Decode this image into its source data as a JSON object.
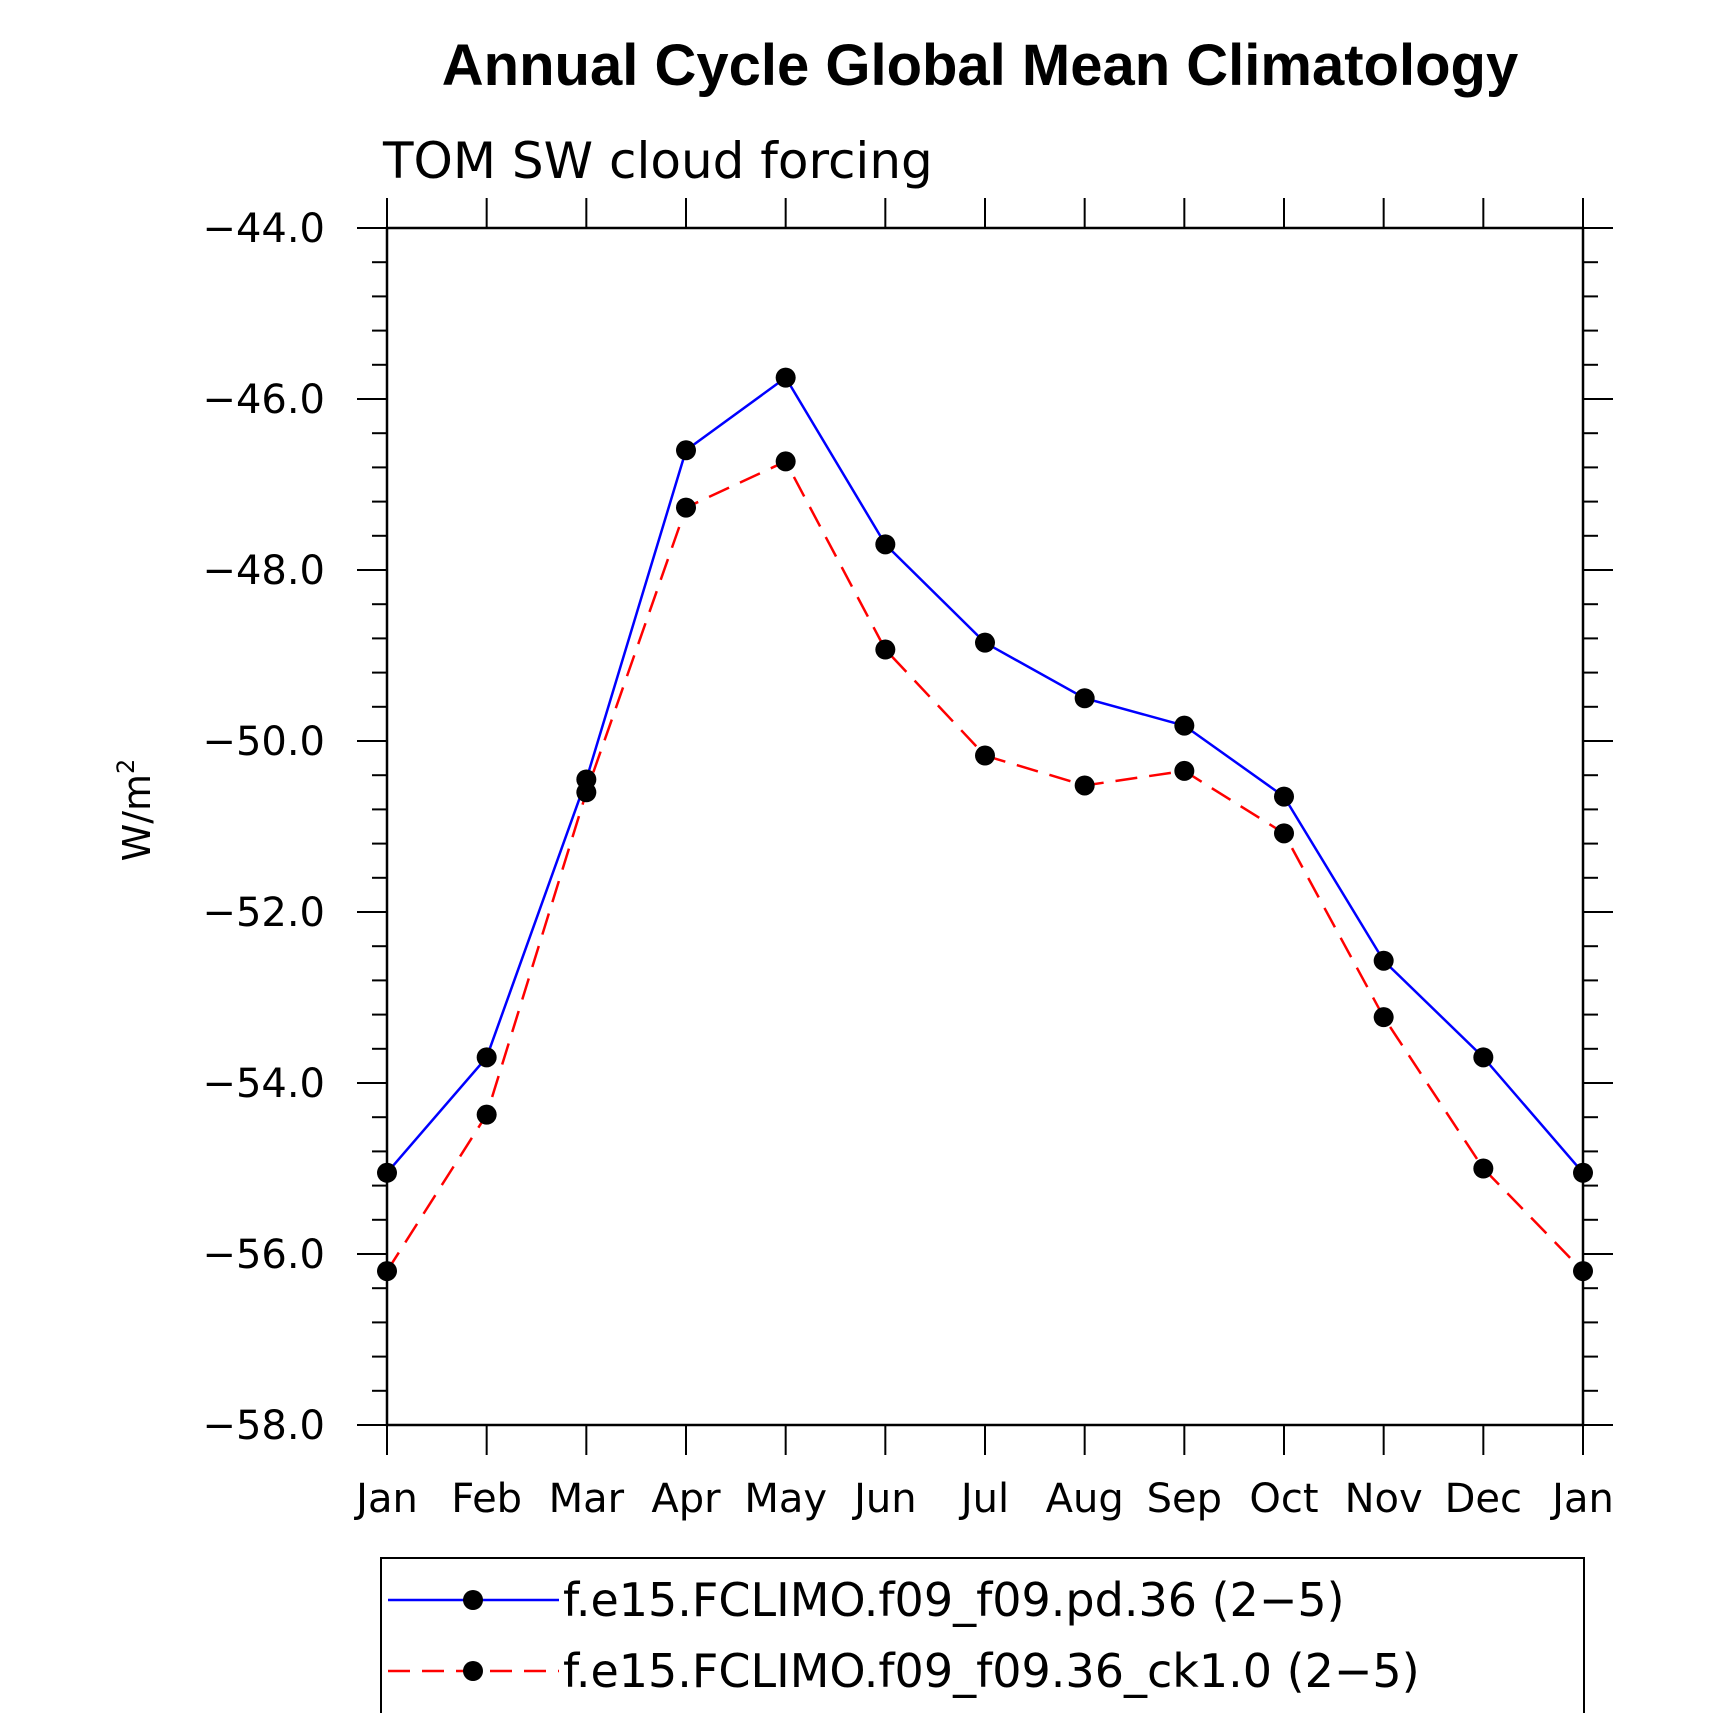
{
  "chart_data": {
    "type": "line",
    "title": "Annual Cycle Global Mean Climatology",
    "subtitle": "TOM SW cloud forcing",
    "ylabel": "W/m",
    "ylabel_sup": "2",
    "xlabel": "",
    "categories": [
      "Jan",
      "Feb",
      "Mar",
      "Apr",
      "May",
      "Jun",
      "Jul",
      "Aug",
      "Sep",
      "Oct",
      "Nov",
      "Dec",
      "Jan"
    ],
    "ylim": [
      -58.0,
      -44.0
    ],
    "yticks": [
      -44.0,
      -46.0,
      -48.0,
      -50.0,
      -52.0,
      -54.0,
      -56.0,
      -58.0
    ],
    "ytick_labels": [
      "−44.0",
      "−46.0",
      "−48.0",
      "−50.0",
      "−52.0",
      "−54.0",
      "−56.0",
      "−58.0"
    ],
    "grid": false,
    "legend_position": "bottom",
    "series": [
      {
        "name": "f.e15.FCLIMO.f09_f09.pd.36 (2−5)",
        "color": "#0000ff",
        "dash": "solid",
        "marker": "filled-circle",
        "values": [
          -55.05,
          -53.7,
          -50.45,
          -46.6,
          -45.75,
          -47.7,
          -48.85,
          -49.5,
          -49.82,
          -50.65,
          -52.57,
          -53.7,
          -55.05
        ]
      },
      {
        "name": "f.e15.FCLIMO.f09_f09.36_ck1.0 (2−5)",
        "color": "#ff0000",
        "dash": "dashed",
        "marker": "filled-circle",
        "values": [
          -56.2,
          -54.37,
          -50.6,
          -47.27,
          -46.73,
          -48.93,
          -50.17,
          -50.52,
          -50.35,
          -51.08,
          -53.23,
          -55.0,
          -56.2
        ]
      }
    ]
  }
}
